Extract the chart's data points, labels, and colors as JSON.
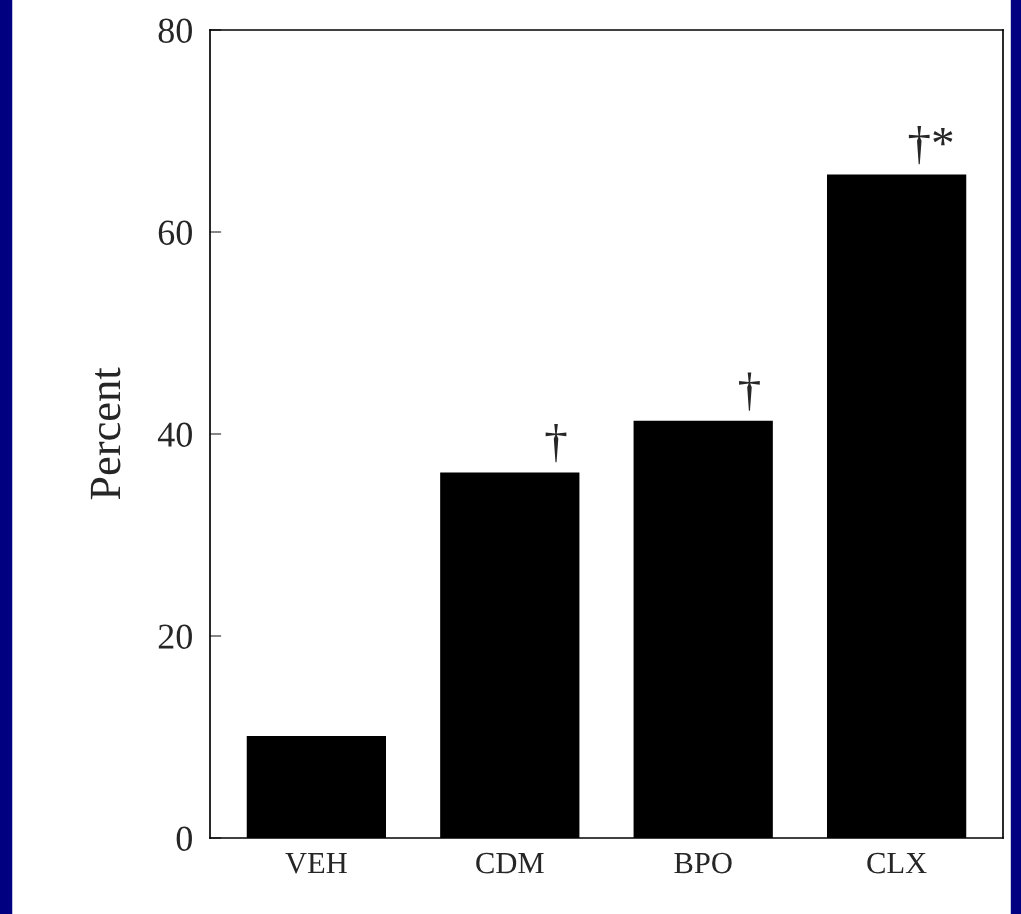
{
  "chart_data": {
    "type": "bar",
    "ylabel": "Percent",
    "categories": [
      "VEH",
      "CDM",
      "BPO",
      "CLX"
    ],
    "values": [
      10.1,
      36.2,
      41.3,
      65.7
    ],
    "color": "#000000",
    "ylim": [
      0,
      80
    ],
    "yticks": [
      0,
      20,
      40,
      60,
      80
    ],
    "grid": false,
    "legend": false,
    "annotations": [
      {
        "text": "†",
        "x": "CDM",
        "y": 36.2
      },
      {
        "text": "†",
        "x": "BPO",
        "y": 41.3
      },
      {
        "text": "†*",
        "x": "CLX",
        "y": 65.7
      }
    ]
  }
}
